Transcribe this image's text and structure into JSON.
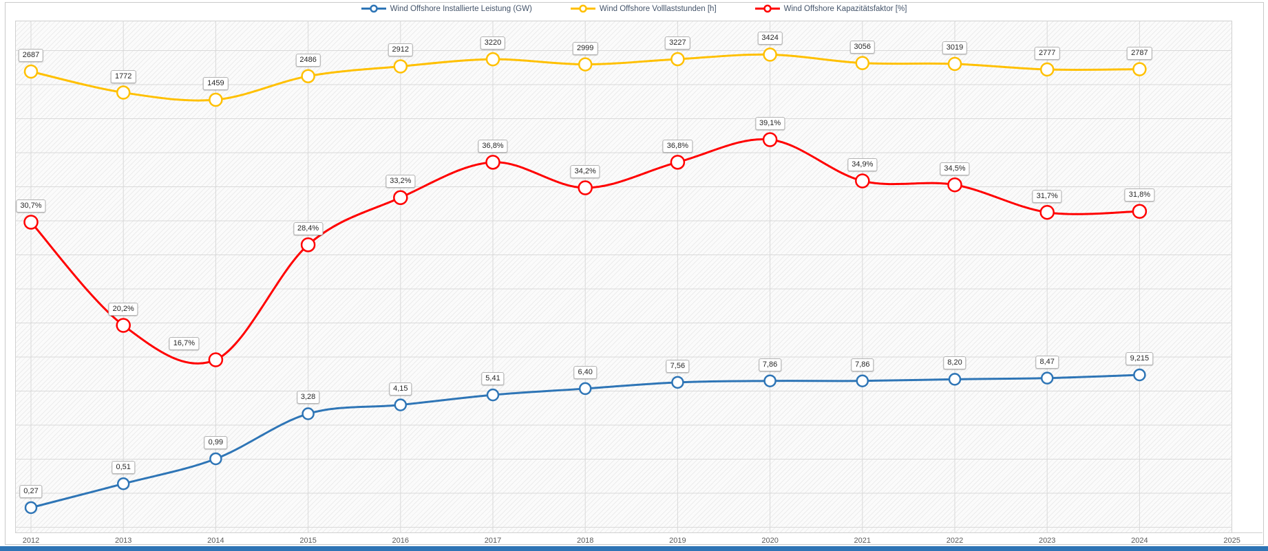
{
  "chart_data": {
    "type": "line",
    "title": "",
    "legend_position": "top",
    "grid": true,
    "categories": [
      "2012",
      "2013",
      "2014",
      "2015",
      "2016",
      "2017",
      "2018",
      "2019",
      "2020",
      "2021",
      "2022",
      "2023",
      "2024"
    ],
    "x_axis_ticks": [
      "2012",
      "2013",
      "2014",
      "2015",
      "2016",
      "2017",
      "2018",
      "2019",
      "2020",
      "2021",
      "2022",
      "2023",
      "2024",
      "2025"
    ],
    "series": [
      {
        "name": "Wind Offshore Installierte Leistung (GW)",
        "color": "#2e75b6",
        "values": [
          0.27,
          0.51,
          0.99,
          3.28,
          4.15,
          5.41,
          6.4,
          7.56,
          7.86,
          7.86,
          8.2,
          8.47,
          9.215
        ],
        "labels": [
          "0,27",
          "0,51",
          "0,99",
          "3,28",
          "4,15",
          "5,41",
          "6,40",
          "7,56",
          "7,86",
          "7,86",
          "8,20",
          "8,47",
          "9,215"
        ]
      },
      {
        "name": "Wind Offshore Volllaststunden [h]",
        "color": "#ffc000",
        "values": [
          2687,
          1772,
          1459,
          2486,
          2912,
          3220,
          2999,
          3227,
          3424,
          3056,
          3019,
          2777,
          2787
        ],
        "labels": [
          "2687",
          "1772",
          "1459",
          "2486",
          "2912",
          "3220",
          "2999",
          "3227",
          "3424",
          "3056",
          "3019",
          "2777",
          "2787"
        ]
      },
      {
        "name": "Wind Offshore Kapazitätsfaktor [%]",
        "color": "#ff0000",
        "values": [
          30.7,
          20.2,
          16.7,
          28.4,
          33.2,
          36.8,
          34.2,
          36.8,
          39.1,
          34.9,
          34.5,
          31.7,
          31.8
        ],
        "labels": [
          "30,7%",
          "20,2%",
          "16,7%",
          "28,4%",
          "33,2%",
          "36,8%",
          "34,2%",
          "36,8%",
          "39,1%",
          "34,9%",
          "34,5%",
          "31,7%",
          "31,8%"
        ]
      }
    ]
  },
  "colors": {
    "grid": "#d9d9d9",
    "plot_border": "#d0d0d0",
    "axis_text": "#595959",
    "legend_text": "#44546a",
    "bottom_bar": "#2e74b5"
  }
}
